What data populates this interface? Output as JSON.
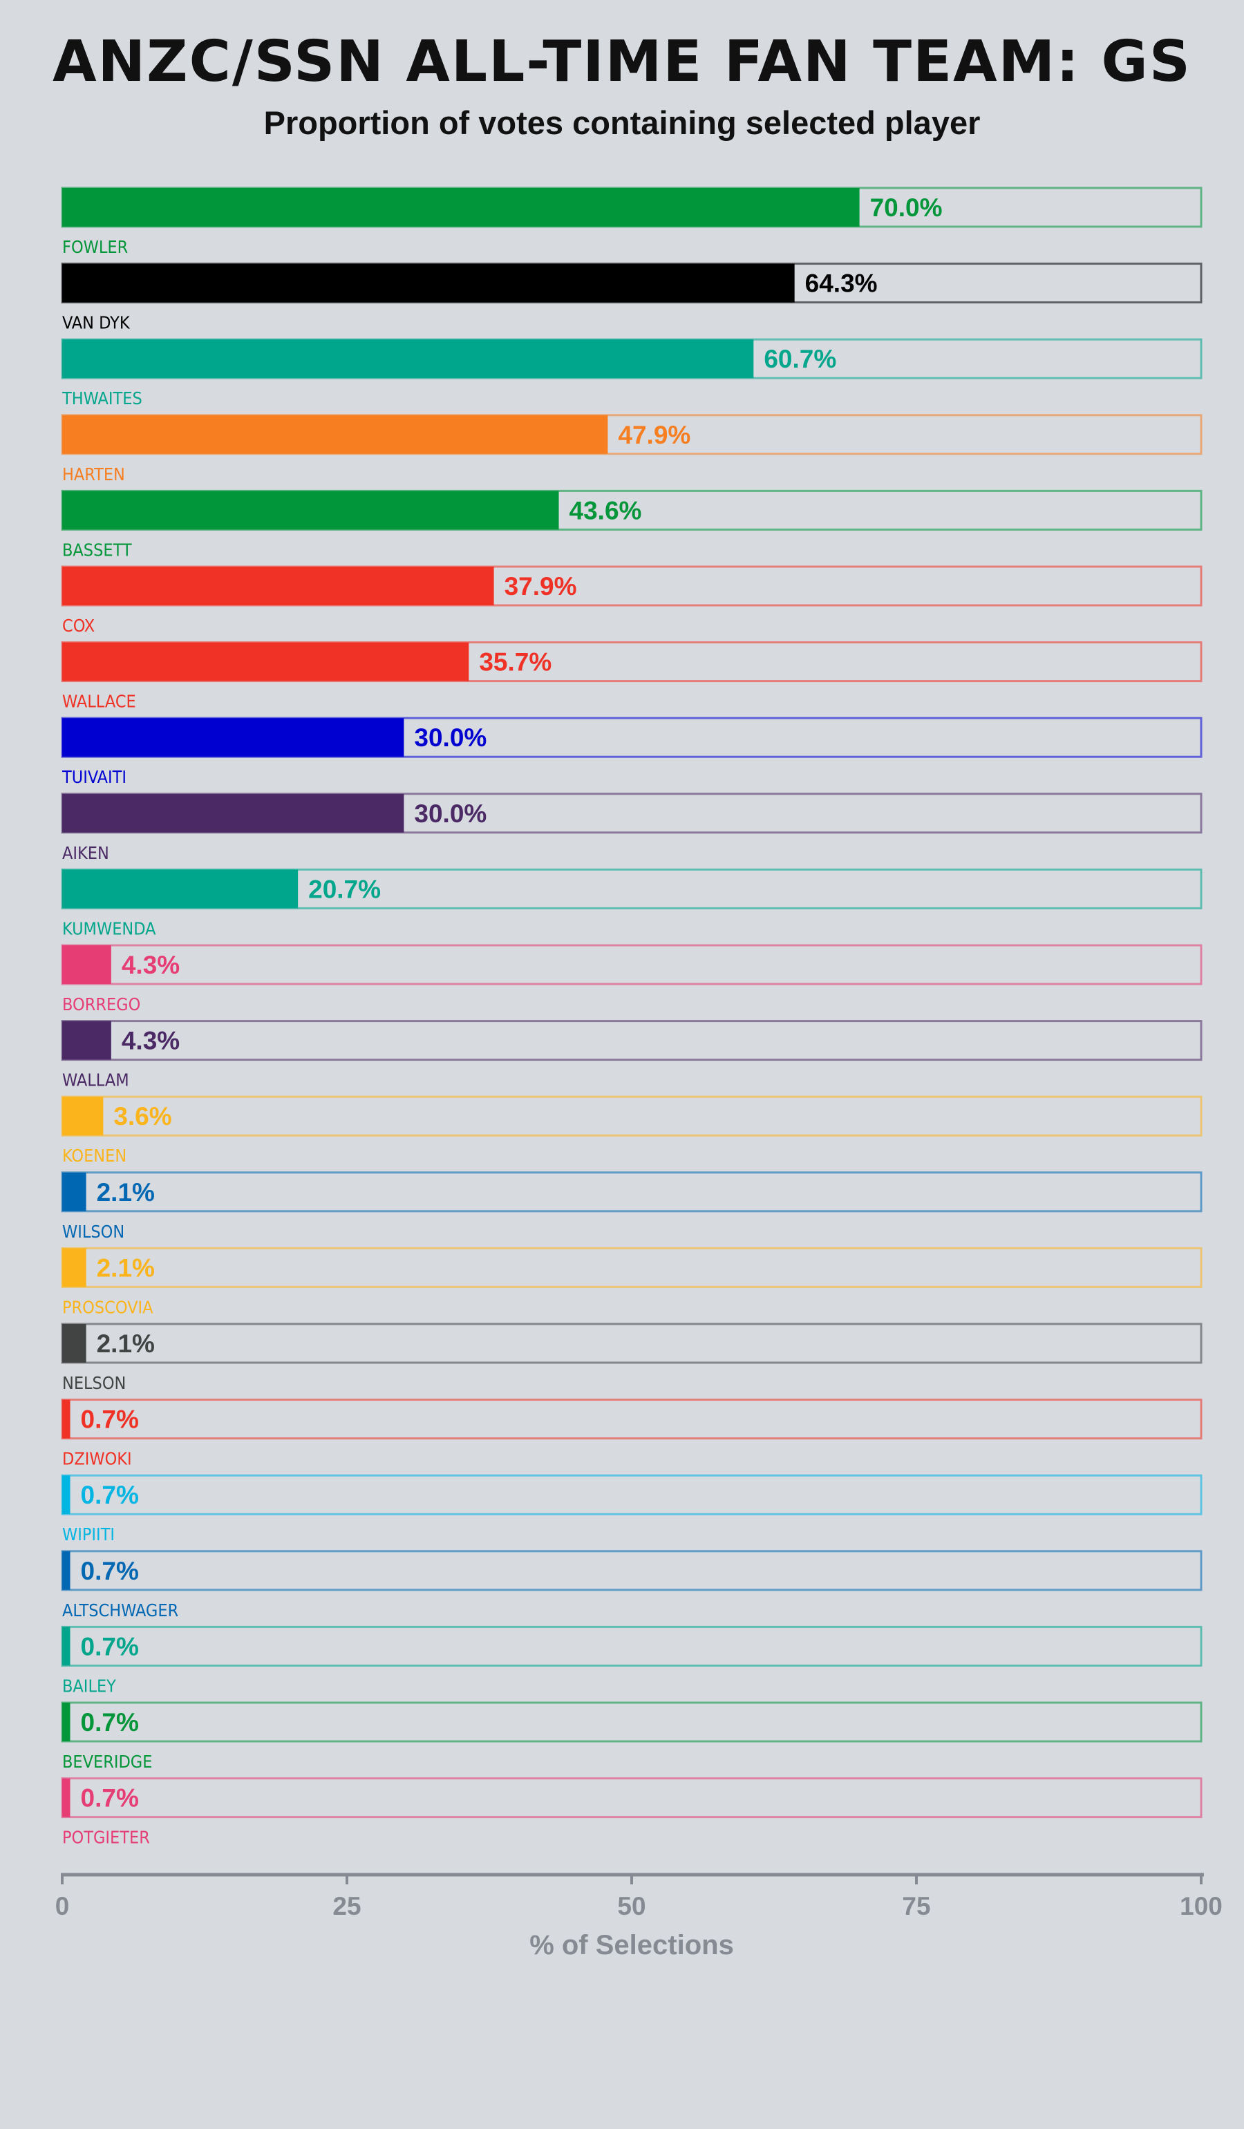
{
  "header": {
    "title": "ANZC/SSN ALL-TIME FAN TEAM: GS",
    "subtitle": "Proportion of votes containing selected player"
  },
  "chart_data": {
    "type": "bar",
    "orientation": "horizontal",
    "title": "ANZC/SSN ALL-TIME FAN TEAM: GS",
    "subtitle": "Proportion of votes containing selected player",
    "xlabel": "% of Selections",
    "ylabel": "",
    "xlim": [
      0,
      100
    ],
    "xticks": [
      "0",
      "25",
      "50",
      "75",
      "100"
    ],
    "grid": false,
    "bars": [
      {
        "name": "FOWLER",
        "value": 70.0,
        "label": "70.0%",
        "color": "#009639"
      },
      {
        "name": "VAN DYK",
        "value": 64.3,
        "label": "64.3%",
        "color": "#000000"
      },
      {
        "name": "THWAITES",
        "value": 60.7,
        "label": "60.7%",
        "color": "#00a68c"
      },
      {
        "name": "HARTEN",
        "value": 47.9,
        "label": "47.9%",
        "color": "#f77f21"
      },
      {
        "name": "BASSETT",
        "value": 43.6,
        "label": "43.6%",
        "color": "#009639"
      },
      {
        "name": "COX",
        "value": 37.9,
        "label": "37.9%",
        "color": "#f03125"
      },
      {
        "name": "WALLACE",
        "value": 35.7,
        "label": "35.7%",
        "color": "#f03125"
      },
      {
        "name": "TUIVAITI",
        "value": 30.0,
        "label": "30.0%",
        "color": "#0000d1"
      },
      {
        "name": "AIKEN",
        "value": 30.0,
        "label": "30.0%",
        "color": "#4a2965"
      },
      {
        "name": "KUMWENDA",
        "value": 20.7,
        "label": "20.7%",
        "color": "#00a68c"
      },
      {
        "name": "BORREGO",
        "value": 4.3,
        "label": "4.3%",
        "color": "#e63d74"
      },
      {
        "name": "WALLAM",
        "value": 4.3,
        "label": "4.3%",
        "color": "#4a2965"
      },
      {
        "name": "KOENEN",
        "value": 3.6,
        "label": "3.6%",
        "color": "#fbb41c"
      },
      {
        "name": "WILSON",
        "value": 2.1,
        "label": "2.1%",
        "color": "#0068b3"
      },
      {
        "name": "PROSCOVIA",
        "value": 2.1,
        "label": "2.1%",
        "color": "#fbb41c"
      },
      {
        "name": "NELSON",
        "value": 2.1,
        "label": "2.1%",
        "color": "#424343"
      },
      {
        "name": "DZIWOKI",
        "value": 0.7,
        "label": "0.7%",
        "color": "#f03125"
      },
      {
        "name": "WIPIITI",
        "value": 0.7,
        "label": "0.7%",
        "color": "#00b5e2"
      },
      {
        "name": "ALTSCHWAGER",
        "value": 0.7,
        "label": "0.7%",
        "color": "#0068b3"
      },
      {
        "name": "BAILEY",
        "value": 0.7,
        "label": "0.7%",
        "color": "#00a68c"
      },
      {
        "name": "BEVERIDGE",
        "value": 0.7,
        "label": "0.7%",
        "color": "#009639"
      },
      {
        "name": "POTGIETER",
        "value": 0.7,
        "label": "0.7%",
        "color": "#e63d74"
      }
    ],
    "colors": {
      "background": "#d7dadf",
      "axis": "#868b93"
    }
  }
}
